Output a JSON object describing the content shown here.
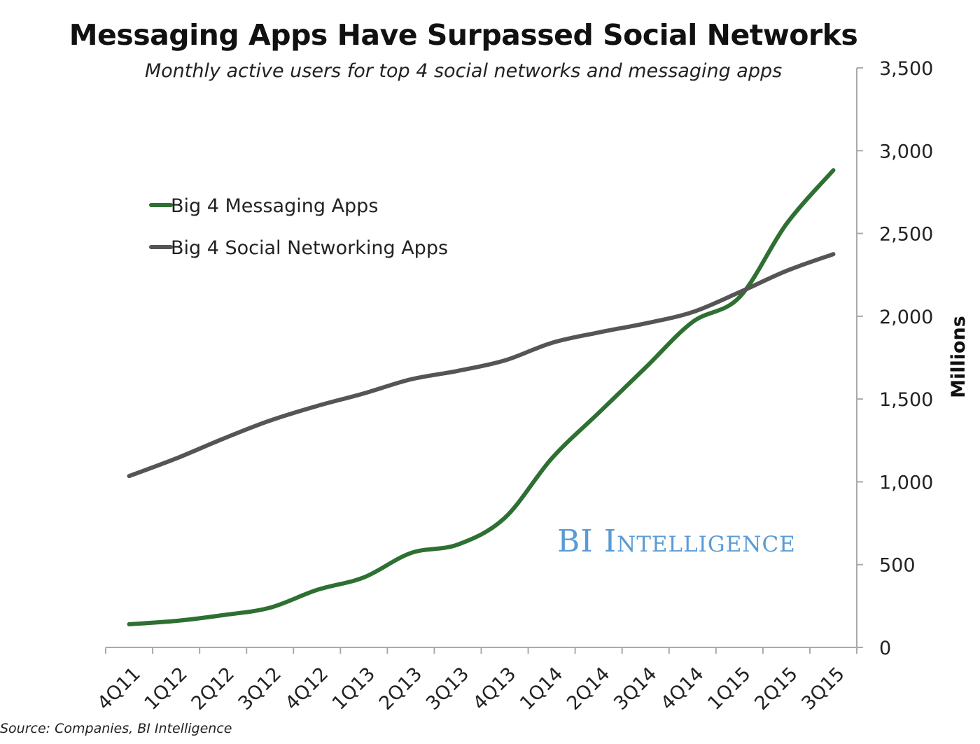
{
  "chart_data": {
    "type": "line",
    "title": "Messaging Apps Have Surpassed Social Networks",
    "subtitle": "Monthly active users for top 4 social networks and messaging apps",
    "xlabel": "",
    "ylabel": "Millions",
    "ylim": [
      0,
      3500
    ],
    "yticks": [
      "0",
      "500",
      "1,000",
      "1,500",
      "2,000",
      "2,500",
      "3,000",
      "3,500"
    ],
    "y_axis_side": "right",
    "grid": false,
    "legend_position": "top-left",
    "categories": [
      "4Q11",
      "1Q12",
      "2Q12",
      "3Q12",
      "4Q12",
      "1Q13",
      "2Q13",
      "3Q13",
      "4Q13",
      "1Q14",
      "2Q14",
      "3Q14",
      "4Q14",
      "1Q15",
      "2Q15",
      "3Q15"
    ],
    "series": [
      {
        "name": "Big 4 Messaging Apps",
        "color": "#2e7032",
        "values": [
          140,
          160,
          195,
          240,
          347,
          423,
          570,
          621,
          782,
          1141,
          1416,
          1690,
          1965,
          2115,
          2557,
          2882
        ]
      },
      {
        "name": "Big 4 Social Networking Apps",
        "color": "#555555",
        "values": [
          1035,
          1141,
          1260,
          1370,
          1458,
          1534,
          1619,
          1670,
          1733,
          1839,
          1902,
          1957,
          2025,
          2145,
          2274,
          2375
        ]
      }
    ],
    "source": "Source: Companies, BI Intelligence",
    "watermark": "BI Intelligence"
  }
}
